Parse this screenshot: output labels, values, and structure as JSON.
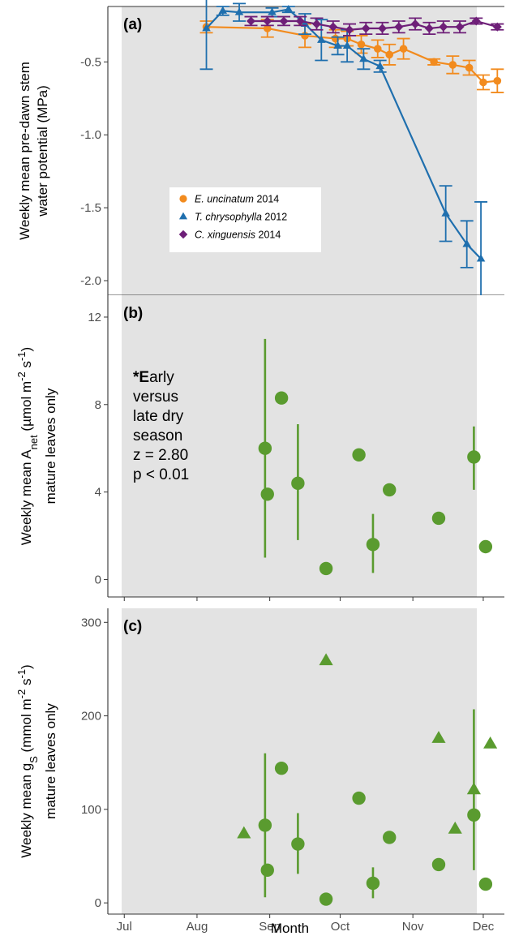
{
  "chart_data": [
    {
      "panel": "(a)",
      "type": "line",
      "ylabel": [
        "Weekly mean pre-dawn stem",
        "water potential (MPa)"
      ],
      "ylim": [
        -2.1,
        -0.12
      ],
      "yticks": [
        -2.0,
        -1.5,
        -1.0,
        -0.5
      ],
      "ytick_labels": [
        "-2.0",
        "-1.5",
        "-1.0",
        "-0.5"
      ],
      "x_domain": [
        "2014-06-24",
        "2014-12-10"
      ],
      "shaded_region": [
        "2014-07-01",
        "2014-12-01"
      ],
      "legend_position": "center-left",
      "series": [
        {
          "name_italic": "E. uncinatum",
          "name_suffix": " 2014",
          "color": "#F28B1E",
          "marker": "circle",
          "points": [
            {
              "x": "2014-08-05",
              "y": -0.26,
              "err": 0.04
            },
            {
              "x": "2014-08-31",
              "y": -0.27,
              "err": 0.06
            },
            {
              "x": "2014-09-16",
              "y": -0.32,
              "err": 0.08
            },
            {
              "x": "2014-09-29",
              "y": -0.34,
              "err": 0.06
            },
            {
              "x": "2014-10-04",
              "y": -0.34,
              "err": 0.05
            },
            {
              "x": "2014-10-10",
              "y": -0.38,
              "err": 0.06
            },
            {
              "x": "2014-10-17",
              "y": -0.41,
              "err": 0.06
            },
            {
              "x": "2014-10-22",
              "y": -0.45,
              "err": 0.07
            },
            {
              "x": "2014-10-28",
              "y": -0.41,
              "err": 0.07
            },
            {
              "x": "2014-11-10",
              "y": -0.5,
              "err": 0.02
            },
            {
              "x": "2014-11-18",
              "y": -0.52,
              "err": 0.06
            },
            {
              "x": "2014-11-25",
              "y": -0.54,
              "err": 0.05
            },
            {
              "x": "2014-12-01",
              "y": -0.64,
              "err": 0.05
            },
            {
              "x": "2014-12-07",
              "y": -0.63,
              "err": 0.08
            }
          ]
        },
        {
          "name_italic": "T. chrysophylla",
          "name_suffix": " 2012",
          "color": "#1F6FAE",
          "marker": "triangle",
          "points": [
            {
              "x": "2014-08-05",
              "y": -0.27,
              "err": 0.28
            },
            {
              "x": "2014-08-12",
              "y": -0.15,
              "err": 0.03
            },
            {
              "x": "2014-08-19",
              "y": -0.16,
              "err": 0.06
            },
            {
              "x": "2014-09-02",
              "y": -0.16,
              "err": 0.03
            },
            {
              "x": "2014-09-09",
              "y": -0.14,
              "err": 0.02
            },
            {
              "x": "2014-09-16",
              "y": -0.24,
              "err": 0.07
            },
            {
              "x": "2014-09-23",
              "y": -0.35,
              "err": 0.14
            },
            {
              "x": "2014-09-30",
              "y": -0.39,
              "err": 0.06
            },
            {
              "x": "2014-10-04",
              "y": -0.39,
              "err": 0.11
            },
            {
              "x": "2014-10-11",
              "y": -0.48,
              "err": 0.07
            },
            {
              "x": "2014-10-18",
              "y": -0.53,
              "err": 0.04
            },
            {
              "x": "2014-11-15",
              "y": -1.54,
              "err": 0.19
            },
            {
              "x": "2014-11-24",
              "y": -1.75,
              "err": 0.16
            },
            {
              "x": "2014-11-30",
              "y": -1.85,
              "err": 0.39
            }
          ]
        },
        {
          "name_italic": "C. xinguensis",
          "name_suffix": " 2014",
          "color": "#6E1F78",
          "marker": "diamond",
          "points": [
            {
              "x": "2014-08-24",
              "y": -0.22,
              "err": 0.03
            },
            {
              "x": "2014-08-31",
              "y": -0.22,
              "err": 0.03
            },
            {
              "x": "2014-09-07",
              "y": -0.22,
              "err": 0.03
            },
            {
              "x": "2014-09-14",
              "y": -0.22,
              "err": 0.03
            },
            {
              "x": "2014-09-21",
              "y": -0.24,
              "err": 0.04
            },
            {
              "x": "2014-09-28",
              "y": -0.26,
              "err": 0.04
            },
            {
              "x": "2014-10-05",
              "y": -0.28,
              "err": 0.04
            },
            {
              "x": "2014-10-12",
              "y": -0.27,
              "err": 0.04
            },
            {
              "x": "2014-10-19",
              "y": -0.27,
              "err": 0.04
            },
            {
              "x": "2014-10-26",
              "y": -0.26,
              "err": 0.04
            },
            {
              "x": "2014-11-02",
              "y": -0.24,
              "err": 0.04
            },
            {
              "x": "2014-11-08",
              "y": -0.27,
              "err": 0.04
            },
            {
              "x": "2014-11-14",
              "y": -0.26,
              "err": 0.04
            },
            {
              "x": "2014-11-21",
              "y": -0.26,
              "err": 0.04
            },
            {
              "x": "2014-11-28",
              "y": -0.22,
              "err": 0.02
            },
            {
              "x": "2014-12-07",
              "y": -0.26,
              "err": 0.02
            }
          ]
        }
      ]
    },
    {
      "panel": "(b)",
      "type": "scatter",
      "ylabel_prefix": "Weekly mean A",
      "ylabel_sub": "net",
      "ylabel_unit_open": " (µmol m",
      "ylabel_exp1": "-2",
      "ylabel_mid": " s",
      "ylabel_exp2": "-1",
      "ylabel_close": ")",
      "ylabel_line2": "mature leaves only",
      "ylim": [
        -0.8,
        13
      ],
      "yticks": [
        0,
        4,
        8,
        12
      ],
      "ytick_labels": [
        "0",
        "4",
        "8",
        "12"
      ],
      "annotation_bold_prefix": "*E",
      "annotation_lines": [
        "arly",
        "versus",
        "late dry",
        "season",
        "z = 2.80",
        "p < 0.01"
      ],
      "series": [
        {
          "color": "#5A9B2F",
          "marker": "circle",
          "points": [
            {
              "x": "2014-08-30",
              "y": 6.0,
              "lo": 1.0,
              "hi": 11.0
            },
            {
              "x": "2014-08-31",
              "y": 3.9
            },
            {
              "x": "2014-09-06",
              "y": 8.3
            },
            {
              "x": "2014-09-13",
              "y": 4.4,
              "lo": 1.8,
              "hi": 7.1
            },
            {
              "x": "2014-09-25",
              "y": 0.5
            },
            {
              "x": "2014-10-09",
              "y": 5.7
            },
            {
              "x": "2014-10-15",
              "y": 1.6,
              "lo": 0.3,
              "hi": 3.0
            },
            {
              "x": "2014-10-22",
              "y": 4.1
            },
            {
              "x": "2014-11-12",
              "y": 2.8
            },
            {
              "x": "2014-11-27",
              "y": 5.6,
              "lo": 4.1,
              "hi": 7.0
            },
            {
              "x": "2014-12-02",
              "y": 1.5
            }
          ]
        }
      ]
    },
    {
      "panel": "(c)",
      "type": "scatter",
      "xlabel": "Month",
      "ylabel_prefix": "Weekly mean g",
      "ylabel_sub": "S",
      "ylabel_unit_open": " (mmol m",
      "ylabel_exp1": "-2",
      "ylabel_mid": " s",
      "ylabel_exp2": "-1",
      "ylabel_close": ")",
      "ylabel_line2": "mature leaves only",
      "ylim": [
        -12,
        315
      ],
      "yticks": [
        0,
        100,
        200,
        300
      ],
      "ytick_labels": [
        "0",
        "100",
        "200",
        "300"
      ],
      "xticks": [
        "2014-07-01",
        "2014-08-01",
        "2014-09-01",
        "2014-10-01",
        "2014-11-01",
        "2014-12-01"
      ],
      "xtick_labels": [
        "Jul",
        "Aug",
        "Sep",
        "Oct",
        "Nov",
        "Dec"
      ],
      "series": [
        {
          "color": "#5A9B2F",
          "marker": "circle",
          "points": [
            {
              "x": "2014-08-30",
              "y": 83,
              "lo": 6,
              "hi": 160
            },
            {
              "x": "2014-08-31",
              "y": 35
            },
            {
              "x": "2014-09-06",
              "y": 144
            },
            {
              "x": "2014-09-13",
              "y": 63,
              "lo": 31,
              "hi": 96
            },
            {
              "x": "2014-09-25",
              "y": 4
            },
            {
              "x": "2014-10-09",
              "y": 112
            },
            {
              "x": "2014-10-15",
              "y": 21,
              "lo": 5,
              "hi": 38
            },
            {
              "x": "2014-10-22",
              "y": 70
            },
            {
              "x": "2014-11-12",
              "y": 41
            },
            {
              "x": "2014-11-27",
              "y": 94,
              "lo": 35,
              "hi": 207
            },
            {
              "x": "2014-12-02",
              "y": 20
            }
          ]
        },
        {
          "color": "#5A9B2F",
          "marker": "triangle",
          "points": [
            {
              "x": "2014-08-21",
              "y": 74
            },
            {
              "x": "2014-09-25",
              "y": 259
            },
            {
              "x": "2014-11-12",
              "y": 176
            },
            {
              "x": "2014-11-19",
              "y": 79
            },
            {
              "x": "2014-11-27",
              "y": 121
            },
            {
              "x": "2014-12-04",
              "y": 170
            }
          ]
        }
      ]
    }
  ]
}
